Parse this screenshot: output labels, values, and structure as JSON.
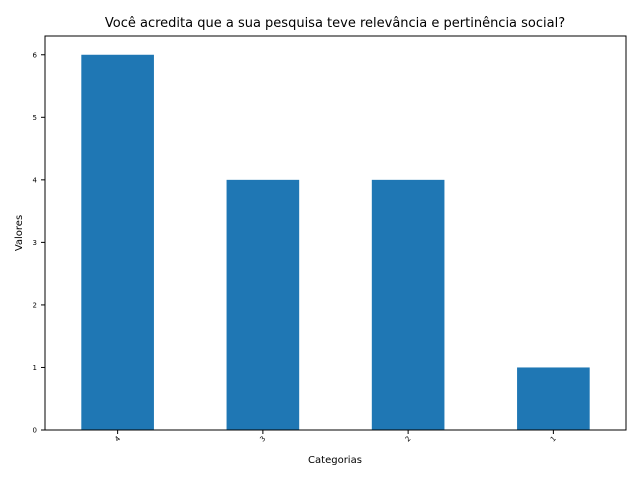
{
  "chart_data": {
    "type": "bar",
    "title": "Você acredita que a sua pesquisa teve relevância e pertinência social?",
    "xlabel": "Categorias",
    "ylabel": "Valores",
    "categories": [
      "4",
      "3",
      "2",
      "1"
    ],
    "values": [
      6,
      4,
      4,
      1
    ],
    "ylim": [
      0,
      6.3
    ],
    "yticks": [
      0,
      1,
      2,
      3,
      4,
      5,
      6
    ],
    "bar_color": "#1f77b4",
    "grid": false,
    "legend": "none"
  }
}
